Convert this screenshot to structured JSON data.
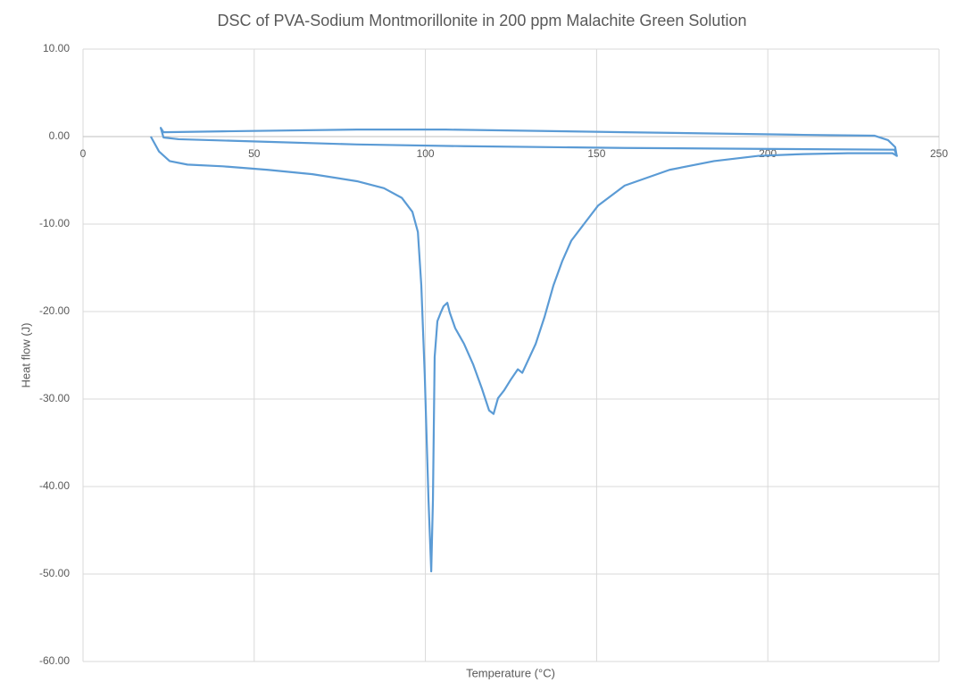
{
  "chart_data": {
    "type": "line",
    "title": "DSC of PVA-Sodium Montmorillonite in 200 ppm Malachite Green Solution",
    "x_label": "Temperature (°C)",
    "y_label": "Heat flow (J)",
    "x": [
      19.8,
      22.2,
      25.3,
      30.5,
      40.9,
      54,
      67,
      80,
      87.9,
      93.1,
      96.2,
      97.8,
      98.8,
      99.8,
      100.9,
      101.7,
      102.2,
      102.7,
      103.5,
      104.5,
      105.3,
      106.4,
      107.1,
      108.7,
      110,
      111.3,
      113.9,
      116.5,
      118.6,
      119.9,
      121.2,
      123,
      124.9,
      127,
      128.3,
      129.6,
      132.2,
      134.8,
      137.4,
      140,
      142.6,
      146.5,
      150.4,
      158.2,
      171.3,
      184.3,
      197.3,
      210.4,
      223.4,
      236.4,
      237.7,
      237,
      197,
      158.2,
      111.3,
      80,
      54,
      27.9,
      23.5,
      22.7,
      23.5,
      40.9,
      80,
      106,
      158.2,
      210.4,
      231.2,
      235.1,
      237.2,
      237.7
    ],
    "series": [
      {
        "color": "#5b9bd5",
        "values": [
          0,
          -1.7,
          -2.8,
          -3.2,
          -3.4,
          -3.8,
          -4.3,
          -5.1,
          -5.9,
          -7.0,
          -8.6,
          -10.9,
          -17,
          -27.2,
          -41.5,
          -49.7,
          -41.5,
          -25.2,
          -21.1,
          -20.1,
          -19.4,
          -19,
          -20.1,
          -21.9,
          -22.8,
          -23.7,
          -26,
          -28.8,
          -31.3,
          -31.7,
          -29.9,
          -29,
          -27.8,
          -26.6,
          -27,
          -25.9,
          -23.7,
          -20.6,
          -17,
          -14.2,
          -11.9,
          -9.9,
          -7.9,
          -5.6,
          -3.8,
          -2.8,
          -2.2,
          -2.0,
          -1.9,
          -1.9,
          -2.2,
          -1.5,
          -1.4,
          -1.3,
          -1.1,
          -0.9,
          -0.6,
          -0.3,
          -0.1,
          1.0,
          0.5,
          0.6,
          0.8,
          0.8,
          0.5,
          0.2,
          0.1,
          -0.4,
          -1.2,
          -2.3
        ]
      }
    ],
    "xlim": [
      0,
      250
    ],
    "xticks": [
      0,
      50,
      100,
      150,
      200,
      250
    ],
    "ylim": [
      -60,
      10
    ],
    "yticks": [
      {
        "value": 10,
        "label": "10.00"
      },
      {
        "value": 0,
        "label": "0.00"
      },
      {
        "value": -10,
        "label": "-10.00"
      },
      {
        "value": -20,
        "label": "-20.00"
      },
      {
        "value": -30,
        "label": "-30.00"
      },
      {
        "value": -40,
        "label": "-40.00"
      },
      {
        "value": -50,
        "label": "-50.00"
      },
      {
        "value": -60,
        "label": "-60.00"
      }
    ],
    "grid": true
  }
}
